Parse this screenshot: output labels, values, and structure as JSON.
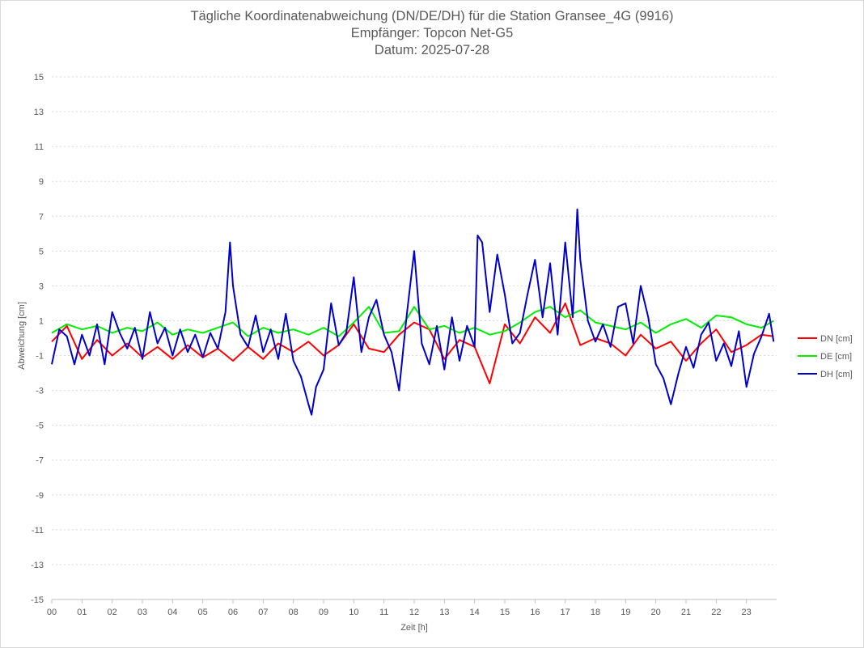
{
  "chart_data": {
    "type": "line",
    "title": "Tägliche Koordinatenabweichung (DN/DE/DH) für die Station Gransee_4G (9916)",
    "subtitle_1": "Empfänger: Topcon Net-G5",
    "subtitle_2": "Datum: 2025-07-28",
    "xlabel": "Zeit [h]",
    "ylabel": "Abweichung [cm]",
    "xlim": [
      0,
      24
    ],
    "ylim": [
      -15,
      15
    ],
    "x_ticks": [
      "00",
      "01",
      "02",
      "03",
      "04",
      "05",
      "06",
      "07",
      "08",
      "09",
      "10",
      "11",
      "12",
      "13",
      "14",
      "15",
      "16",
      "17",
      "18",
      "19",
      "20",
      "21",
      "22",
      "23"
    ],
    "y_ticks": [
      "15",
      "13",
      "11",
      "9",
      "7",
      "5",
      "3",
      "1",
      "-1",
      "-3",
      "-5",
      "-7",
      "-9",
      "-11",
      "-13",
      "-15"
    ],
    "grid": true,
    "legend_position": "right",
    "series": [
      {
        "name": "DN [cm]",
        "color": "#ff0000",
        "x": [
          0,
          0.5,
          1,
          1.5,
          2,
          2.5,
          3,
          3.5,
          4,
          4.5,
          5,
          5.5,
          6,
          6.5,
          7,
          7.5,
          8,
          8.5,
          9,
          9.5,
          10,
          10.5,
          11,
          11.5,
          12,
          12.5,
          13,
          13.5,
          14,
          14.5,
          15,
          15.5,
          16,
          16.5,
          17,
          17.5,
          18,
          18.5,
          19,
          19.5,
          20,
          20.5,
          21,
          21.5,
          22,
          22.5,
          23,
          23.5,
          23.9
        ],
        "y": [
          -0.2,
          0.7,
          -1.2,
          -0.1,
          -1.0,
          -0.3,
          -1.1,
          -0.5,
          -1.2,
          -0.4,
          -1.1,
          -0.6,
          -1.3,
          -0.5,
          -1.2,
          -0.3,
          -0.8,
          -0.2,
          -1.0,
          -0.4,
          0.8,
          -0.6,
          -0.8,
          0.2,
          0.9,
          0.5,
          -1.2,
          -0.1,
          -0.5,
          -2.6,
          0.8,
          -0.3,
          1.2,
          0.3,
          2.0,
          -0.4,
          0.0,
          -0.3,
          -1.0,
          0.2,
          -0.6,
          -0.2,
          -1.3,
          -0.3,
          0.5,
          -0.8,
          -0.4,
          0.2,
          0.1
        ]
      },
      {
        "name": "DE [cm]",
        "color": "#00ee00",
        "x": [
          0,
          0.5,
          1,
          1.5,
          2,
          2.5,
          3,
          3.5,
          4,
          4.5,
          5,
          5.5,
          6,
          6.5,
          7,
          7.5,
          8,
          8.5,
          9,
          9.5,
          10,
          10.5,
          11,
          11.5,
          12,
          12.5,
          13,
          13.5,
          14,
          14.5,
          15,
          15.5,
          16,
          16.5,
          17,
          17.5,
          18,
          18.5,
          19,
          19.5,
          20,
          20.5,
          21,
          21.5,
          22,
          22.5,
          23,
          23.5,
          23.9
        ],
        "y": [
          0.3,
          0.8,
          0.5,
          0.7,
          0.3,
          0.6,
          0.4,
          0.9,
          0.2,
          0.5,
          0.3,
          0.6,
          0.9,
          0.1,
          0.6,
          0.3,
          0.5,
          0.2,
          0.6,
          0.1,
          0.9,
          1.8,
          0.3,
          0.4,
          1.8,
          0.5,
          0.7,
          0.3,
          0.6,
          0.2,
          0.4,
          0.9,
          1.5,
          1.8,
          1.2,
          1.6,
          0.9,
          0.7,
          0.5,
          0.9,
          0.3,
          0.8,
          1.1,
          0.6,
          1.3,
          1.2,
          0.8,
          0.6,
          1.0
        ]
      },
      {
        "name": "DH [cm]",
        "color": "#0000cc",
        "x": [
          0,
          0.25,
          0.5,
          0.75,
          1,
          1.25,
          1.5,
          1.75,
          2,
          2.25,
          2.5,
          2.75,
          3,
          3.25,
          3.5,
          3.75,
          4,
          4.25,
          4.5,
          4.75,
          5,
          5.25,
          5.5,
          5.75,
          5.9,
          6,
          6.25,
          6.5,
          6.75,
          7,
          7.25,
          7.5,
          7.75,
          8,
          8.25,
          8.5,
          8.6,
          8.75,
          9,
          9.25,
          9.5,
          9.75,
          10,
          10.25,
          10.5,
          10.75,
          11,
          11.25,
          11.5,
          11.75,
          12,
          12.25,
          12.5,
          12.75,
          13,
          13.25,
          13.5,
          13.75,
          14,
          14.1,
          14.25,
          14.5,
          14.75,
          15,
          15.25,
          15.5,
          15.75,
          16,
          16.25,
          16.5,
          16.75,
          17,
          17.25,
          17.4,
          17.5,
          17.75,
          18,
          18.25,
          18.5,
          18.75,
          19,
          19.25,
          19.5,
          19.75,
          20,
          20.25,
          20.5,
          20.75,
          21,
          21.25,
          21.5,
          21.75,
          22,
          22.25,
          22.5,
          22.75,
          23,
          23.25,
          23.5,
          23.75,
          23.9
        ],
        "y": [
          -1.5,
          0.5,
          0.1,
          -1.5,
          0.2,
          -1.0,
          0.8,
          -1.5,
          1.5,
          0.3,
          -0.6,
          0.6,
          -1.2,
          1.5,
          -0.3,
          0.6,
          -1.0,
          0.5,
          -0.8,
          0.2,
          -1.1,
          0.3,
          -0.6,
          1.5,
          5.5,
          3.0,
          0.2,
          -0.5,
          1.3,
          -0.8,
          0.5,
          -1.2,
          1.4,
          -1.3,
          -2.2,
          -3.8,
          -4.4,
          -2.8,
          -1.8,
          2.0,
          -0.4,
          0.3,
          3.5,
          -0.8,
          1.2,
          2.2,
          0.2,
          -0.8,
          -3.0,
          1.3,
          5.0,
          -0.3,
          -1.5,
          0.7,
          -1.8,
          1.2,
          -1.3,
          0.7,
          -0.5,
          5.9,
          5.5,
          1.5,
          4.8,
          2.5,
          -0.3,
          0.3,
          2.5,
          4.5,
          1.2,
          4.3,
          0.2,
          5.5,
          1.2,
          7.4,
          4.5,
          1.0,
          -0.2,
          0.8,
          -0.5,
          1.8,
          2.0,
          -0.3,
          3.0,
          1.2,
          -1.5,
          -2.3,
          -3.8,
          -2.0,
          -0.5,
          -1.7,
          0.2,
          0.9,
          -1.3,
          -0.3,
          -1.6,
          0.4,
          -2.8,
          -0.9,
          0.1,
          1.4,
          -0.2
        ]
      }
    ]
  }
}
